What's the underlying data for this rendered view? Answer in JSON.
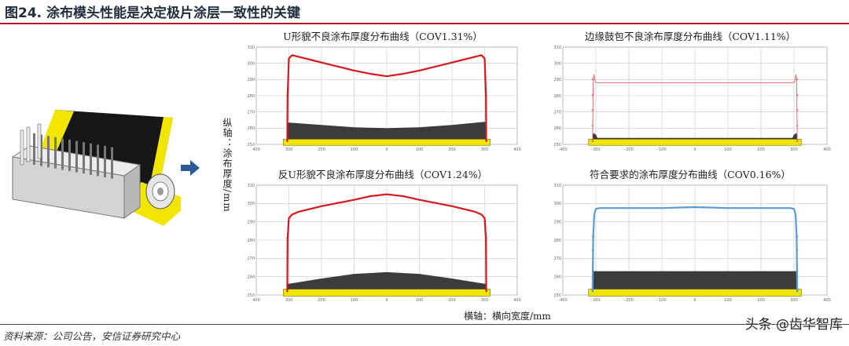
{
  "figure_title": "图24. 涂布模头性能是决定极片涂层一致性的关键",
  "source_note": "资料来源：公司公告，安信证券研究中心",
  "watermark": "头条 @齿华智库",
  "y_axis_label": "纵轴：涂布厚度/mm",
  "x_axis_label": "横轴：横向宽度/mm",
  "illustration": {
    "name": "coating-die-illustration",
    "colors": {
      "roller_band": "#f2e600",
      "coating": "#161616",
      "die": "#cfcfcf"
    }
  },
  "arrow_color": "#2c5b9b",
  "chart_data": [
    {
      "type": "line",
      "title": "U形貌不良涂布厚度分布曲线（COV1.31%）",
      "xlim": [
        -400,
        400
      ],
      "ylim": [
        250,
        310
      ],
      "x_ticks": [
        -400,
        -300,
        -200,
        -100,
        0,
        100,
        200,
        300,
        400
      ],
      "x_tick_labels": [
        "400",
        "300",
        "200",
        "100",
        "0",
        "100",
        "200",
        "300",
        "400"
      ],
      "y_ticks": [
        250,
        260,
        270,
        280,
        290,
        300,
        310
      ],
      "color": "#d8191c",
      "x": [
        -305,
        -304,
        -300,
        -290,
        -270,
        -240,
        -200,
        -150,
        -100,
        -50,
        0,
        50,
        100,
        150,
        200,
        240,
        270,
        290,
        300,
        304,
        305
      ],
      "y": [
        252,
        280,
        303,
        305,
        304,
        302.5,
        300.5,
        298,
        295.5,
        293.5,
        292,
        293.5,
        295.5,
        298,
        300.5,
        302.5,
        304,
        305,
        303,
        280,
        252
      ],
      "profile_x": [
        -305,
        -200,
        -100,
        0,
        100,
        200,
        305
      ],
      "profile_y": [
        263.5,
        262,
        260.5,
        260,
        260.5,
        262,
        264
      ],
      "baseline": 252
    },
    {
      "type": "line",
      "title": "边缘鼓包不良涂布厚度分布曲线（COV1.11%）",
      "xlim": [
        -400,
        400
      ],
      "ylim": [
        250,
        310
      ],
      "x_ticks": [
        -400,
        -300,
        -200,
        -100,
        0,
        100,
        200,
        300,
        400
      ],
      "x_tick_labels": [
        "-400",
        "-300",
        "-200",
        "-100",
        "0",
        "100",
        "200",
        "300",
        "400"
      ],
      "y_ticks": [
        250,
        260,
        270,
        280,
        290,
        300,
        310
      ],
      "color": "#e06060",
      "x": [
        -310,
        -308,
        -306,
        -302,
        -295,
        -250,
        0,
        250,
        295,
        302,
        306,
        308,
        310
      ],
      "y": [
        252,
        290,
        293,
        288.5,
        288,
        288,
        288,
        288,
        288,
        288.5,
        293,
        290,
        252
      ],
      "profile_x": [
        -310,
        -307,
        -300,
        -295,
        0,
        295,
        300,
        307,
        310
      ],
      "profile_y": [
        255,
        257,
        256,
        254,
        254,
        254,
        256,
        257,
        255
      ],
      "baseline": 252
    },
    {
      "type": "line",
      "title": "反U形貌不良涂布厚度分布曲线（COV1.24%）",
      "xlim": [
        -400,
        400
      ],
      "ylim": [
        250,
        310
      ],
      "x_ticks": [
        -400,
        -300,
        -200,
        -100,
        0,
        100,
        200,
        300,
        400
      ],
      "x_tick_labels": [
        "400",
        "300",
        "200",
        "100",
        "0",
        "100",
        "200",
        "300",
        "400"
      ],
      "y_ticks": [
        250,
        260,
        270,
        280,
        290,
        300,
        310
      ],
      "color": "#d8191c",
      "x": [
        -305,
        -304,
        -300,
        -290,
        -270,
        -200,
        -100,
        -50,
        0,
        50,
        100,
        200,
        270,
        290,
        300,
        304,
        305
      ],
      "y": [
        252,
        281,
        292,
        294,
        295.5,
        298.5,
        302,
        304,
        305,
        304,
        302,
        298.5,
        295.5,
        294,
        292,
        281,
        252
      ],
      "profile_x": [
        -305,
        -200,
        -100,
        0,
        100,
        200,
        305
      ],
      "profile_y": [
        256,
        259,
        261.5,
        262.5,
        261.5,
        259,
        256
      ],
      "baseline": 252
    },
    {
      "type": "line",
      "title": "符合要求的涂布厚度分布曲线（COV0.16%）",
      "xlim": [
        -400,
        400
      ],
      "ylim": [
        250,
        310
      ],
      "x_ticks": [
        -400,
        -300,
        -200,
        -100,
        0,
        100,
        200,
        300,
        400
      ],
      "x_tick_labels": [
        "-400",
        "-300",
        "-200",
        "-100",
        "0",
        "100",
        "200",
        "300",
        "400"
      ],
      "y_ticks": [
        250,
        260,
        270,
        280,
        290,
        300,
        310
      ],
      "color": "#5b9bd5",
      "x": [
        -310,
        -308,
        -305,
        -300,
        -290,
        -200,
        -100,
        0,
        100,
        200,
        290,
        300,
        305,
        308,
        310
      ],
      "y": [
        252,
        282,
        294,
        297,
        297.5,
        297.5,
        297.5,
        298,
        297.5,
        297.5,
        297.5,
        297,
        294,
        282,
        252
      ],
      "profile_x": [
        -310,
        310
      ],
      "profile_y": [
        263,
        263
      ],
      "baseline": 252
    }
  ]
}
